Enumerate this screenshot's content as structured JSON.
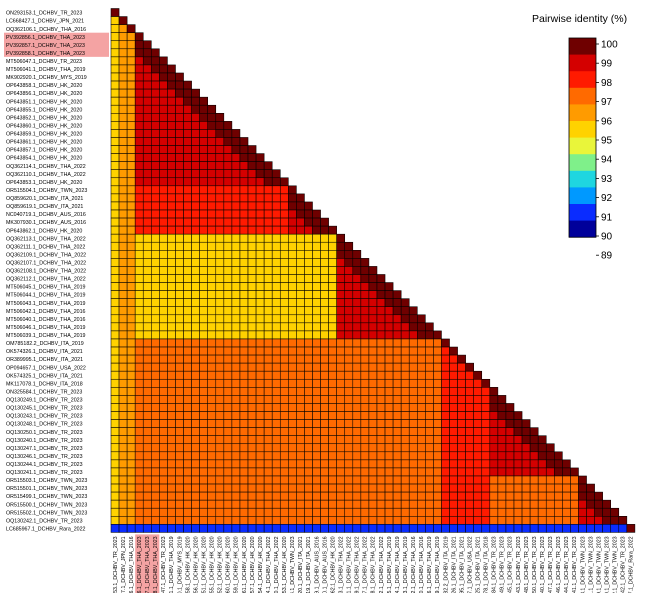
{
  "legend": {
    "title": "Pairwise identity (%)",
    "ticks": [
      "100",
      "99",
      "98",
      "97",
      "96",
      "95",
      "94",
      "93",
      "92",
      "91",
      "90",
      "89"
    ],
    "colors": [
      "#6f0000",
      "#d40000",
      "#ff1a00",
      "#ff6a00",
      "#ff9b00",
      "#ffd200",
      "#e9f53a",
      "#7ff08a",
      "#1fd6e0",
      "#0099ff",
      "#0a2cff",
      "#00009a"
    ]
  },
  "highlight_color": "#f4a3a3",
  "highlighted_labels": [
    "PV392856.1_DCHBV_THA_2023",
    "PV392857.1_DCHBV_THA_2023",
    "PV392858.1_DCHBV_THA_2023"
  ],
  "sequences": [
    "ON293153.1_DCHBV_TR_2023",
    "LC668427.1_DCHBV_JPN_2021",
    "OQ362106.1_DCHBV_THA_2016",
    "PV392856.1_DCHBV_THA_2023",
    "PV392857.1_DCHBV_THA_2023",
    "PV392858.1_DCHBV_THA_2023",
    "MT506047.1_DCHBV_TR_2023",
    "MT506041.1_DCHBV_THA_2019",
    "MK902920.1_DCHBV_MYS_2019",
    "OP643858.1_DCHBV_HK_2020",
    "OP643856.1_DCHBV_HK_2020",
    "OP643851.1_DCHBV_HK_2020",
    "OP643855.1_DCHBV_HK_2020",
    "OP643852.1_DCHBV_HK_2020",
    "OP643860.1_DCHBV_HK_2020",
    "OP643859.1_DCHBV_HK_2020",
    "OP643861.1_DCHBV_HK_2020",
    "OP643857.1_DCHBV_HK_2020",
    "OP643854.1_DCHBV_HK_2020",
    "OQ362114.1_DCHBV_THA_2022",
    "OQ362110.1_DCHBV_THA_2022",
    "OP643853.1_DCHBV_HK_2020",
    "OR515504.1_DCHBV_TWN_2023",
    "OQ859620.1_DCHBV_ITA_2021",
    "OQ859619.1_DCHBV_ITA_2021",
    "NC040719.1_DCHBV_AUS_2016",
    "MK307930.1_DCHBV_AUS_2016",
    "OP643862.1_DCHBV_HK_2020",
    "OQ362113.1_DCHBV_THA_2022",
    "OQ362111.1_DCHBV_THA_2022",
    "OQ362109.1_DCHBV_THA_2022",
    "OQ362107.1_DCHBV_THA_2022",
    "OQ362108.1_DCHBV_THA_2022",
    "OQ362112.1_DCHBV_THA_2022",
    "MT506045.1_DCHBV_THA_2019",
    "MT506044.1_DCHBV_THA_2019",
    "MT506043.1_DCHBV_THA_2019",
    "MT506042.1_DCHBV_THA_2016",
    "MT506040.1_DCHBV_THA_2016",
    "MT506046.1_DCHBV_THA_2019",
    "MT506039.1_DCHBV_THA_2019",
    "OM785182.2_DCHBV_ITA_2019",
    "OK574326.1_DCHBV_ITA_2021",
    "OR389995.1_DCHBV_ITA_2021",
    "OP094657.1_DCHBV_USA_2022",
    "OK574325.1_DCHBV_ITA_2021",
    "MK117078.1_DCHBV_ITA_2018",
    "ON325584.1_DCHBV_TR_2023",
    "OQ130249.1_DCHBV_TR_2023",
    "OQ130245.1_DCHBV_TR_2023",
    "OQ130243.1_DCHBV_TR_2023",
    "OQ130248.1_DCHBV_TR_2023",
    "OQ130250.1_DCHBV_TR_2023",
    "OQ130240.1_DCHBV_TR_2023",
    "OQ130247.1_DCHBV_TR_2023",
    "OQ130246.1_DCHBV_TR_2023",
    "OQ130244.1_DCHBV_TR_2023",
    "OQ130241.1_DCHBV_TR_2023",
    "OR515503.1_DCHBV_TWN_2023",
    "OR515501.1_DCHBV_TWN_2023",
    "OR515499.1_DCHBV_TWN_2023",
    "OR515500.1_DCHBV_TWN_2023",
    "OR515502.1_DCHBV_TWN_2023",
    "OQ130242.1_DCHBV_TR_2023",
    "LC685967.1_DCHBV_Rara_2022"
  ]
}
